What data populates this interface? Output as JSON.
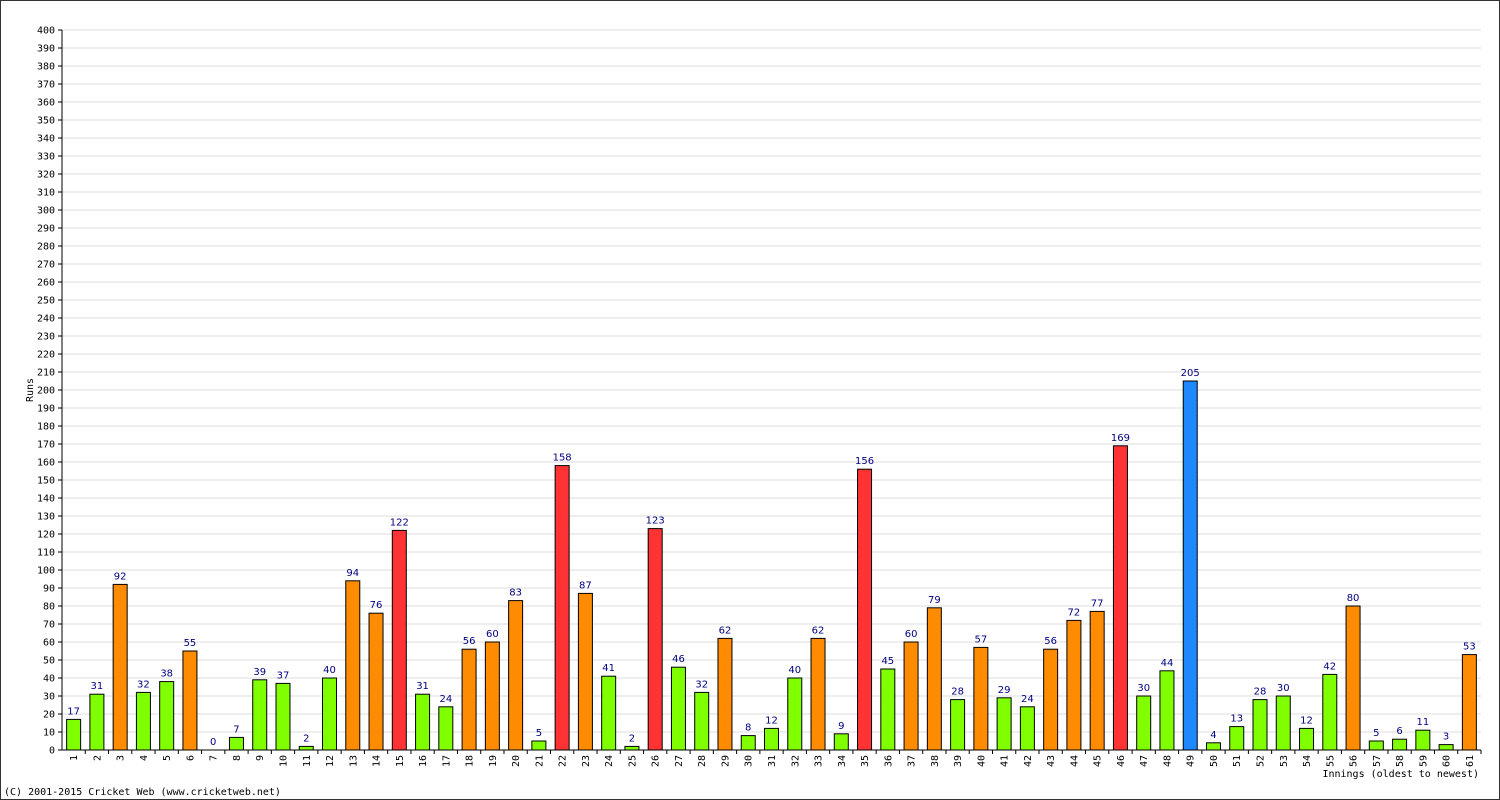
{
  "chart_data": {
    "type": "bar",
    "y_label": "Runs",
    "x_label": "Innings (oldest to newest)",
    "footer": "(C) 2001-2015 Cricket Web (www.cricketweb.net)",
    "categories": [
      "1",
      "2",
      "3",
      "4",
      "5",
      "6",
      "7",
      "8",
      "9",
      "10",
      "11",
      "12",
      "13",
      "14",
      "15",
      "16",
      "17",
      "18",
      "19",
      "20",
      "21",
      "22",
      "23",
      "24",
      "25",
      "26",
      "27",
      "28",
      "29",
      "30",
      "31",
      "32",
      "33",
      "34",
      "35",
      "36",
      "37",
      "38",
      "39",
      "40",
      "41",
      "42",
      "43",
      "44",
      "45",
      "46",
      "47",
      "48",
      "49",
      "50",
      "51",
      "52",
      "53",
      "54",
      "55",
      "56",
      "57",
      "58",
      "59",
      "60",
      "61"
    ],
    "values": [
      17,
      31,
      92,
      32,
      38,
      55,
      0,
      7,
      39,
      37,
      2,
      40,
      94,
      76,
      122,
      31,
      24,
      56,
      60,
      83,
      5,
      158,
      87,
      41,
      2,
      123,
      46,
      32,
      62,
      8,
      12,
      40,
      62,
      9,
      156,
      45,
      60,
      79,
      28,
      57,
      29,
      24,
      56,
      72,
      77,
      169,
      30,
      44,
      205,
      4,
      13,
      28,
      30,
      12,
      42,
      80,
      5,
      6,
      11,
      3,
      53
    ],
    "colors": [
      "#80ff00",
      "#80ff00",
      "#ff8c00",
      "#80ff00",
      "#80ff00",
      "#ff8c00",
      "#80ff00",
      "#80ff00",
      "#80ff00",
      "#80ff00",
      "#80ff00",
      "#80ff00",
      "#ff8c00",
      "#ff8c00",
      "#ff3333",
      "#80ff00",
      "#80ff00",
      "#ff8c00",
      "#ff8c00",
      "#ff8c00",
      "#80ff00",
      "#ff3333",
      "#ff8c00",
      "#80ff00",
      "#80ff00",
      "#ff3333",
      "#80ff00",
      "#80ff00",
      "#ff8c00",
      "#80ff00",
      "#80ff00",
      "#80ff00",
      "#ff8c00",
      "#80ff00",
      "#ff3333",
      "#80ff00",
      "#ff8c00",
      "#ff8c00",
      "#80ff00",
      "#ff8c00",
      "#80ff00",
      "#80ff00",
      "#ff8c00",
      "#ff8c00",
      "#ff8c00",
      "#ff3333",
      "#80ff00",
      "#80ff00",
      "#1e88ff",
      "#80ff00",
      "#80ff00",
      "#80ff00",
      "#80ff00",
      "#80ff00",
      "#80ff00",
      "#ff8c00",
      "#80ff00",
      "#80ff00",
      "#80ff00",
      "#80ff00",
      "#ff8c00"
    ],
    "ylim": [
      0,
      400
    ],
    "yticks": [
      0,
      10,
      20,
      30,
      40,
      50,
      60,
      70,
      80,
      90,
      100,
      110,
      120,
      130,
      140,
      150,
      160,
      170,
      180,
      190,
      200,
      210,
      220,
      230,
      240,
      250,
      260,
      270,
      280,
      290,
      300,
      310,
      320,
      330,
      340,
      350,
      360,
      370,
      380,
      390,
      400
    ],
    "grid": true
  }
}
